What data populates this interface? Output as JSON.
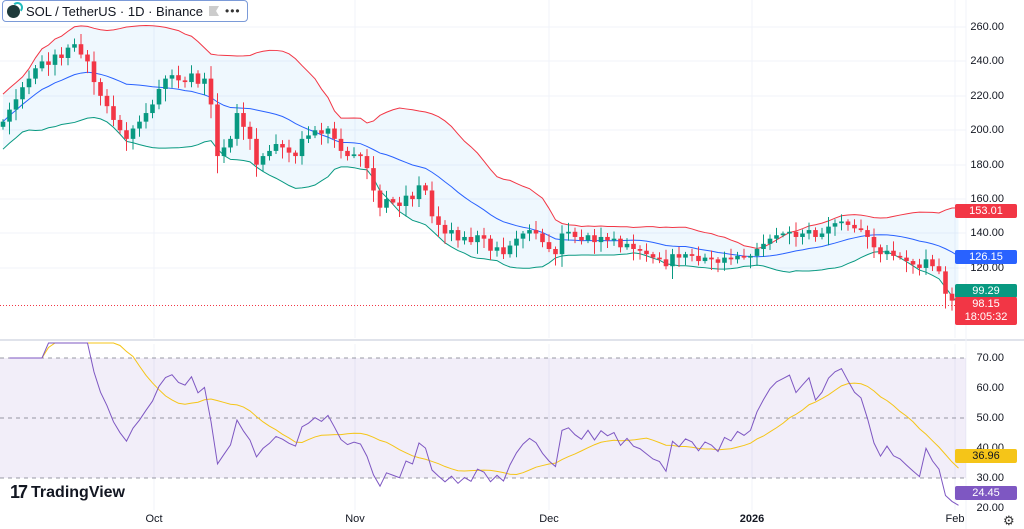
{
  "legend": {
    "symbol": "SOL / TetherUS · 1D · Binance",
    "more_icon": "more-dots-icon"
  },
  "price_axis": [
    "260.00",
    "240.00",
    "220.00",
    "200.00",
    "180.00",
    "160.00",
    "140.00",
    "120.00"
  ],
  "price_badges": {
    "upper_band": "153.01",
    "basis": "126.15",
    "lower_band": "99.29",
    "last_price": "98.15",
    "countdown": "18:05:32"
  },
  "rsi_axis": [
    "70.00",
    "60.00",
    "50.00",
    "40.00",
    "30.00",
    "20.00"
  ],
  "rsi_badges": {
    "rsi_ma": "36.96",
    "rsi": "24.45"
  },
  "time_axis": [
    {
      "label": "Oct",
      "bold": false
    },
    {
      "label": "Nov",
      "bold": false
    },
    {
      "label": "Dec",
      "bold": false
    },
    {
      "label": "2026",
      "bold": true
    },
    {
      "label": "Feb",
      "bold": false
    }
  ],
  "brand": "TradingView",
  "colors": {
    "up": "#089981",
    "down": "#F23645",
    "basis": "#2962FF",
    "upper": "#F23645",
    "lower": "#089981",
    "rsi": "#7E57C2",
    "rsi_ma": "#F5C518"
  },
  "chart_data": {
    "type": "candlestick",
    "series": [
      {
        "name": "SOL / TetherUS",
        "closes": [
          205,
          212,
          218,
          225,
          230,
          236,
          240,
          238,
          244,
          242,
          248,
          250,
          244,
          240,
          228,
          220,
          214,
          206,
          200,
          195,
          201,
          205,
          210,
          215,
          224,
          230,
          232,
          229,
          228,
          233,
          227,
          230,
          215,
          185,
          190,
          195,
          210,
          202,
          195,
          180,
          185,
          188,
          192,
          190,
          187,
          185,
          195,
          197,
          200,
          198,
          201,
          195,
          188,
          185,
          186,
          185,
          178,
          165,
          155,
          160,
          158,
          156,
          162,
          160,
          168,
          165,
          150,
          145,
          140,
          142,
          136,
          138,
          135,
          139,
          137,
          130,
          132,
          128,
          133,
          137,
          140,
          142,
          140,
          135,
          131,
          128,
          140,
          141,
          138,
          136,
          139,
          135,
          138,
          136,
          137,
          132,
          134,
          131,
          130,
          128,
          126,
          125,
          121,
          128,
          126,
          128,
          127,
          124,
          126,
          125,
          123,
          126,
          125,
          127,
          126,
          127,
          131,
          134,
          137,
          139,
          140,
          141,
          138,
          140,
          142,
          138,
          140,
          144,
          146,
          147,
          145,
          143,
          142,
          138,
          132,
          128,
          130,
          127,
          126,
          124,
          122,
          120,
          125,
          121,
          118,
          105,
          101,
          98.15
        ]
      }
    ],
    "ylim": [
      90,
      270
    ],
    "rsi_ylim": [
      20,
      72
    ],
    "rsi_levels": [
      70,
      50,
      30
    ],
    "grid": true
  }
}
